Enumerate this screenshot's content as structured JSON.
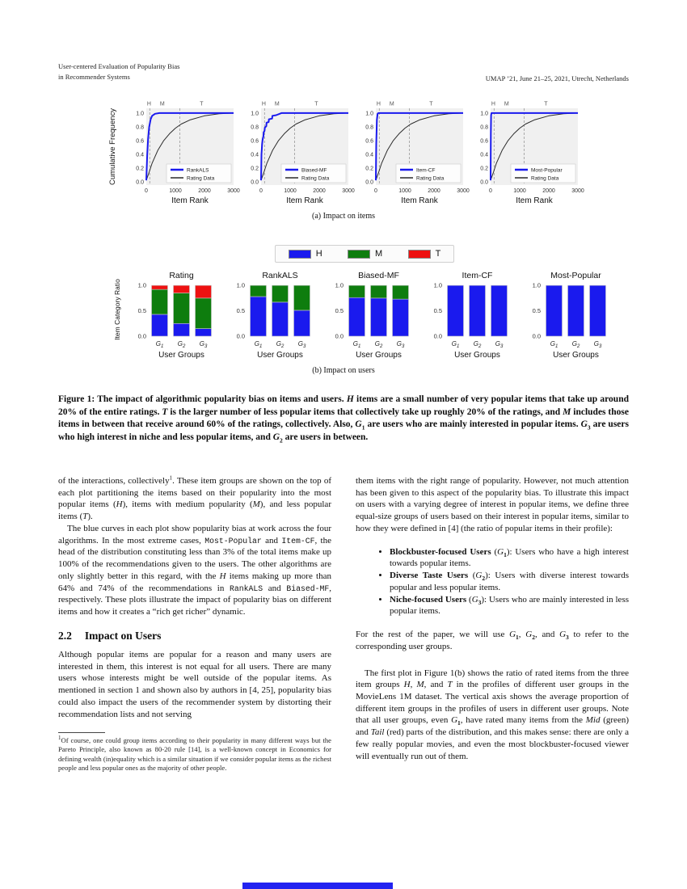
{
  "header": {
    "left_line1": "User-centered Evaluation of Popularity Bias",
    "left_line2": "in Recommender Systems",
    "right": "UMAP ’21, June 21–25, 2021, Utrecht, Netherlands"
  },
  "figure": {
    "caption_a": "(a) Impact on items",
    "caption_b": "(b) Impact on users",
    "legend_b": [
      {
        "label": "H",
        "color": "#1a1aee"
      },
      {
        "label": "M",
        "color": "#0e7d0e"
      },
      {
        "label": "T",
        "color": "#ee1111"
      }
    ],
    "caption_runs": [
      "Figure 1: The impact of algorithmic popularity bias on items and users. ",
      [
        "H",
        "i"
      ],
      " items are a small number of very popular items that take up around 20% of the entire ratings. ",
      [
        "T",
        "i"
      ],
      " is the larger number of less popular items that collectively take up roughly 20% of the ratings, and ",
      [
        "M",
        "i"
      ],
      " includes those items in between that receive around 60% of the ratings, collectively. Also, ",
      [
        "G",
        "i"
      ],
      [
        "1",
        "sub"
      ],
      " are users who are mainly interested in popular items. ",
      [
        "G",
        "i"
      ],
      [
        "3",
        "sub"
      ],
      " are users who high interest in niche and less popular items, and ",
      [
        "G",
        "i"
      ],
      [
        "2",
        "sub"
      ],
      " are users in between."
    ]
  },
  "chart_data": [
    {
      "type": "line",
      "panel": "a",
      "legend": "RankALS",
      "xlabel": "Item Rank",
      "ylabel": "Cumulative Frequency",
      "xlim": [
        0,
        3000
      ],
      "ylim": [
        0,
        1
      ],
      "xticks": [
        0,
        1000,
        2000,
        3000
      ],
      "yticks": [
        0.0,
        0.2,
        0.4,
        0.6,
        0.8,
        1.0
      ],
      "vlines": [
        120,
        1150
      ],
      "regions": [
        {
          "label": "H",
          "x": 95
        },
        {
          "label": "M",
          "x": 550
        },
        {
          "label": "T",
          "x": 1900
        }
      ],
      "series": [
        {
          "name": "RankALS",
          "color": "#1a1aee",
          "width": 2,
          "x": [
            0,
            30,
            60,
            100,
            150,
            200,
            300,
            450,
            700,
            3000
          ],
          "y": [
            0.02,
            0.38,
            0.62,
            0.8,
            0.91,
            0.96,
            0.99,
            1.0,
            1.0,
            1.0
          ]
        },
        {
          "name": "Rating Data",
          "color": "#2a2a2a",
          "width": 1,
          "x": [
            0,
            100,
            200,
            400,
            600,
            800,
            1000,
            1200,
            1500,
            2000,
            2500,
            3000
          ],
          "y": [
            0.02,
            0.14,
            0.27,
            0.46,
            0.6,
            0.7,
            0.78,
            0.84,
            0.9,
            0.96,
            0.99,
            1.0
          ]
        }
      ]
    },
    {
      "type": "line",
      "panel": "a",
      "legend": "Biased-MF",
      "xlabel": "Item Rank",
      "ylabel": null,
      "xlim": [
        0,
        3000
      ],
      "ylim": [
        0,
        1
      ],
      "xticks": [
        0,
        1000,
        2000,
        3000
      ],
      "yticks": [
        0.0,
        0.2,
        0.4,
        0.6,
        0.8,
        1.0
      ],
      "vlines": [
        120,
        1150
      ],
      "regions": [
        {
          "label": "H",
          "x": 95
        },
        {
          "label": "M",
          "x": 550
        },
        {
          "label": "T",
          "x": 1900
        }
      ],
      "series": [
        {
          "name": "Biased-MF",
          "color": "#1a1aee",
          "width": 2,
          "x": [
            0,
            15,
            25,
            35,
            50,
            60,
            80,
            90,
            120,
            130,
            180,
            190,
            260,
            270,
            380,
            390,
            520,
            700,
            3000
          ],
          "y": [
            0.02,
            0.4,
            0.47,
            0.55,
            0.6,
            0.63,
            0.66,
            0.72,
            0.74,
            0.79,
            0.81,
            0.86,
            0.87,
            0.91,
            0.92,
            0.96,
            0.97,
            1.0,
            1.0
          ]
        },
        {
          "name": "Rating Data",
          "color": "#2a2a2a",
          "width": 1,
          "x": [
            0,
            100,
            200,
            400,
            600,
            800,
            1000,
            1200,
            1500,
            2000,
            2500,
            3000
          ],
          "y": [
            0.02,
            0.14,
            0.27,
            0.46,
            0.6,
            0.7,
            0.78,
            0.84,
            0.9,
            0.96,
            0.99,
            1.0
          ]
        }
      ]
    },
    {
      "type": "line",
      "panel": "a",
      "legend": "Item-CF",
      "xlabel": "Item Rank",
      "ylabel": null,
      "xlim": [
        0,
        3000
      ],
      "ylim": [
        0,
        1
      ],
      "xticks": [
        0,
        1000,
        2000,
        3000
      ],
      "yticks": [
        0.0,
        0.2,
        0.4,
        0.6,
        0.8,
        1.0
      ],
      "vlines": [
        120,
        1150
      ],
      "regions": [
        {
          "label": "H",
          "x": 95
        },
        {
          "label": "M",
          "x": 550
        },
        {
          "label": "T",
          "x": 1900
        }
      ],
      "series": [
        {
          "name": "Item-CF",
          "color": "#1a1aee",
          "width": 2,
          "x": [
            0,
            15,
            35,
            60,
            90,
            3000
          ],
          "y": [
            0.02,
            0.55,
            0.9,
            0.99,
            1.0,
            1.0
          ]
        },
        {
          "name": "Rating Data",
          "color": "#2a2a2a",
          "width": 1,
          "x": [
            0,
            100,
            200,
            400,
            600,
            800,
            1000,
            1200,
            1500,
            2000,
            2500,
            3000
          ],
          "y": [
            0.02,
            0.14,
            0.27,
            0.46,
            0.6,
            0.7,
            0.78,
            0.84,
            0.9,
            0.96,
            0.99,
            1.0
          ]
        }
      ]
    },
    {
      "type": "line",
      "panel": "a",
      "legend": "Most-Popular",
      "xlabel": "Item Rank",
      "ylabel": null,
      "xlim": [
        0,
        3000
      ],
      "ylim": [
        0,
        1
      ],
      "xticks": [
        0,
        1000,
        2000,
        3000
      ],
      "yticks": [
        0.0,
        0.2,
        0.4,
        0.6,
        0.8,
        1.0
      ],
      "vlines": [
        120,
        1150
      ],
      "regions": [
        {
          "label": "H",
          "x": 95
        },
        {
          "label": "M",
          "x": 550
        },
        {
          "label": "T",
          "x": 1900
        }
      ],
      "series": [
        {
          "name": "Most-Popular",
          "color": "#1a1aee",
          "width": 2,
          "x": [
            0,
            8,
            18,
            30,
            3000
          ],
          "y": [
            0.02,
            0.7,
            0.97,
            1.0,
            1.0
          ]
        },
        {
          "name": "Rating Data",
          "color": "#2a2a2a",
          "width": 1,
          "x": [
            0,
            100,
            200,
            400,
            600,
            800,
            1000,
            1200,
            1500,
            2000,
            2500,
            3000
          ],
          "y": [
            0.02,
            0.14,
            0.27,
            0.46,
            0.6,
            0.7,
            0.78,
            0.84,
            0.9,
            0.96,
            0.99,
            1.0
          ]
        }
      ]
    },
    {
      "type": "stacked_bar",
      "panel": "b",
      "title": "Rating",
      "xlabel": "User Groups",
      "ylabel": "Item Category Ratio",
      "categories": [
        "G1",
        "G2",
        "G3"
      ],
      "yticks": [
        0.0,
        0.5,
        1.0
      ],
      "ylim": [
        0,
        1
      ],
      "series": [
        {
          "name": "H",
          "color": "#1a1aee",
          "values": [
            0.43,
            0.25,
            0.15
          ]
        },
        {
          "name": "M",
          "color": "#0e7d0e",
          "values": [
            0.49,
            0.6,
            0.6
          ]
        },
        {
          "name": "T",
          "color": "#ee1111",
          "values": [
            0.08,
            0.15,
            0.25
          ]
        }
      ]
    },
    {
      "type": "stacked_bar",
      "panel": "b",
      "title": "RankALS",
      "xlabel": "User Groups",
      "ylabel": null,
      "categories": [
        "G1",
        "G2",
        "G3"
      ],
      "yticks": [
        0.0,
        0.5,
        1.0
      ],
      "ylim": [
        0,
        1
      ],
      "series": [
        {
          "name": "H",
          "color": "#1a1aee",
          "values": [
            0.78,
            0.67,
            0.51
          ]
        },
        {
          "name": "M",
          "color": "#0e7d0e",
          "values": [
            0.22,
            0.33,
            0.49
          ]
        },
        {
          "name": "T",
          "color": "#ee1111",
          "values": [
            0,
            0,
            0
          ]
        }
      ]
    },
    {
      "type": "stacked_bar",
      "panel": "b",
      "title": "Biased-MF",
      "xlabel": "User Groups",
      "ylabel": null,
      "categories": [
        "G1",
        "G2",
        "G3"
      ],
      "yticks": [
        0.0,
        0.5,
        1.0
      ],
      "ylim": [
        0,
        1
      ],
      "series": [
        {
          "name": "H",
          "color": "#1a1aee",
          "values": [
            0.76,
            0.75,
            0.73
          ]
        },
        {
          "name": "M",
          "color": "#0e7d0e",
          "values": [
            0.24,
            0.25,
            0.27
          ]
        },
        {
          "name": "T",
          "color": "#ee1111",
          "values": [
            0,
            0,
            0
          ]
        }
      ]
    },
    {
      "type": "stacked_bar",
      "panel": "b",
      "title": "Item-CF",
      "xlabel": "User Groups",
      "ylabel": null,
      "categories": [
        "G1",
        "G2",
        "G3"
      ],
      "yticks": [
        0.0,
        0.5,
        1.0
      ],
      "ylim": [
        0,
        1
      ],
      "series": [
        {
          "name": "H",
          "color": "#1a1aee",
          "values": [
            1.0,
            1.0,
            1.0
          ]
        },
        {
          "name": "M",
          "color": "#0e7d0e",
          "values": [
            0,
            0,
            0
          ]
        },
        {
          "name": "T",
          "color": "#ee1111",
          "values": [
            0,
            0,
            0
          ]
        }
      ]
    },
    {
      "type": "stacked_bar",
      "panel": "b",
      "title": "Most-Popular",
      "xlabel": "User Groups",
      "ylabel": null,
      "categories": [
        "G1",
        "G2",
        "G3"
      ],
      "yticks": [
        0.0,
        0.5,
        1.0
      ],
      "ylim": [
        0,
        1
      ],
      "series": [
        {
          "name": "H",
          "color": "#1a1aee",
          "values": [
            1.0,
            1.0,
            1.0
          ]
        },
        {
          "name": "M",
          "color": "#0e7d0e",
          "values": [
            0,
            0,
            0
          ]
        },
        {
          "name": "T",
          "color": "#ee1111",
          "values": [
            0,
            0,
            0
          ]
        }
      ]
    }
  ],
  "body": {
    "left": {
      "p1": [
        "of the interactions, collectively",
        [
          "1",
          "sup"
        ],
        ". These item groups are shown on the top of each plot partitioning the items based on their popularity into the most popular items (",
        [
          "H",
          "i"
        ],
        "), items with medium popularity (",
        [
          "M",
          "i"
        ],
        "), and less popular items (",
        [
          "T",
          "i"
        ],
        ")."
      ],
      "p2": [
        "The blue curves in each plot show popularity bias at work across the four algorithms. In the most extreme cases, ",
        [
          "Most-Popular",
          "m"
        ],
        " and ",
        [
          "Item-CF",
          "m"
        ],
        ", the head of the distribution constituting less than 3% of the total items make up 100% of the recommendations given to the users. The other algorithms are only slightly better in this regard, with the ",
        [
          "H",
          "i"
        ],
        " items making up more than 64% and 74% of the recommendations in ",
        [
          "RankALS",
          "m"
        ],
        " and ",
        [
          "Biased-MF",
          "m"
        ],
        ", respectively. These plots illustrate the impact of popularity bias on different items and how it creates a “rich get richer” dynamic."
      ],
      "heading_number": "2.2",
      "heading_text": "Impact on Users",
      "p3": "Although popular items are popular for a reason and many users are interested in them, this interest is not equal for all users. There are many users whose interests might be well outside of the popular items. As mentioned in section 1 and shown also by authors in [4, 25], popularity bias could also impact the users of the recommender system by distorting their recommendation lists and not serving",
      "footnote": [
        [
          "1",
          "sup"
        ],
        "Of course, one could group items according to their popularity in many different ways but the Pareto Principle, also known as 80-20 rule [14], is a well-known concept in Economics for defining wealth (in)equality which is a similar situation if we consider popular items as the richest people and less popular ones as the majority of other people."
      ]
    },
    "right": {
      "p1": "them items with the right range of popularity. However, not much attention has been given to this aspect of the popularity bias. To illustrate this impact on users with a varying degree of interest in popular items, we define three equal-size groups of users based on their interest in popular items, similar to how they were defined in [4] (the ratio of popular items in their profile):",
      "bullets": [
        [
          [
            "Blockbuster-focused Users",
            "b"
          ],
          " (",
          [
            "G",
            "i"
          ],
          [
            "1",
            "sub"
          ],
          "): Users who have a high interest towards popular items."
        ],
        [
          [
            "Diverse Taste Users",
            "b"
          ],
          " (",
          [
            "G",
            "i"
          ],
          [
            "2",
            "sub"
          ],
          "): Users with diverse interest towards popular and less popular items."
        ],
        [
          [
            "Niche-focused Users",
            "b"
          ],
          " (",
          [
            "G",
            "i"
          ],
          [
            "3",
            "sub"
          ],
          "): Users who are mainly interested in less popular items."
        ]
      ],
      "p2": [
        "For the rest of the paper, we will use ",
        [
          "G",
          "i"
        ],
        [
          "1",
          "sub"
        ],
        ", ",
        [
          "G",
          "i"
        ],
        [
          "2",
          "sub"
        ],
        ", and ",
        [
          "G",
          "i"
        ],
        [
          "3",
          "sub"
        ],
        " to refer to the corresponding user groups."
      ],
      "p3": [
        "The first plot in Figure 1(b) shows the ratio of rated items from the three item groups ",
        [
          "H",
          "i"
        ],
        ", ",
        [
          "M",
          "i"
        ],
        ", and ",
        [
          "T",
          "i"
        ],
        " in the profiles of different user groups in the MovieLens 1M dataset. The vertical axis shows the average proportion of different item groups in the profiles of users in different user groups. Note that all user groups, even ",
        [
          "G",
          "i"
        ],
        [
          "1",
          "sub"
        ],
        ", have rated many items from the ",
        [
          "Mid",
          "i"
        ],
        " (green) and ",
        [
          "Tail",
          "i"
        ],
        " (red) parts of the distribution, and this makes sense: there are only a few really popular movies, and even the most blockbuster-focused viewer will eventually run out of them."
      ]
    }
  },
  "colors": {
    "head_blue": "#1a1aee",
    "mid_green": "#0e7d0e",
    "tail_red": "#ee1111",
    "rating_curve": "#2a2a2a",
    "plot_bg": "#f0f0f0",
    "bottom_bar": "#2323f0"
  }
}
